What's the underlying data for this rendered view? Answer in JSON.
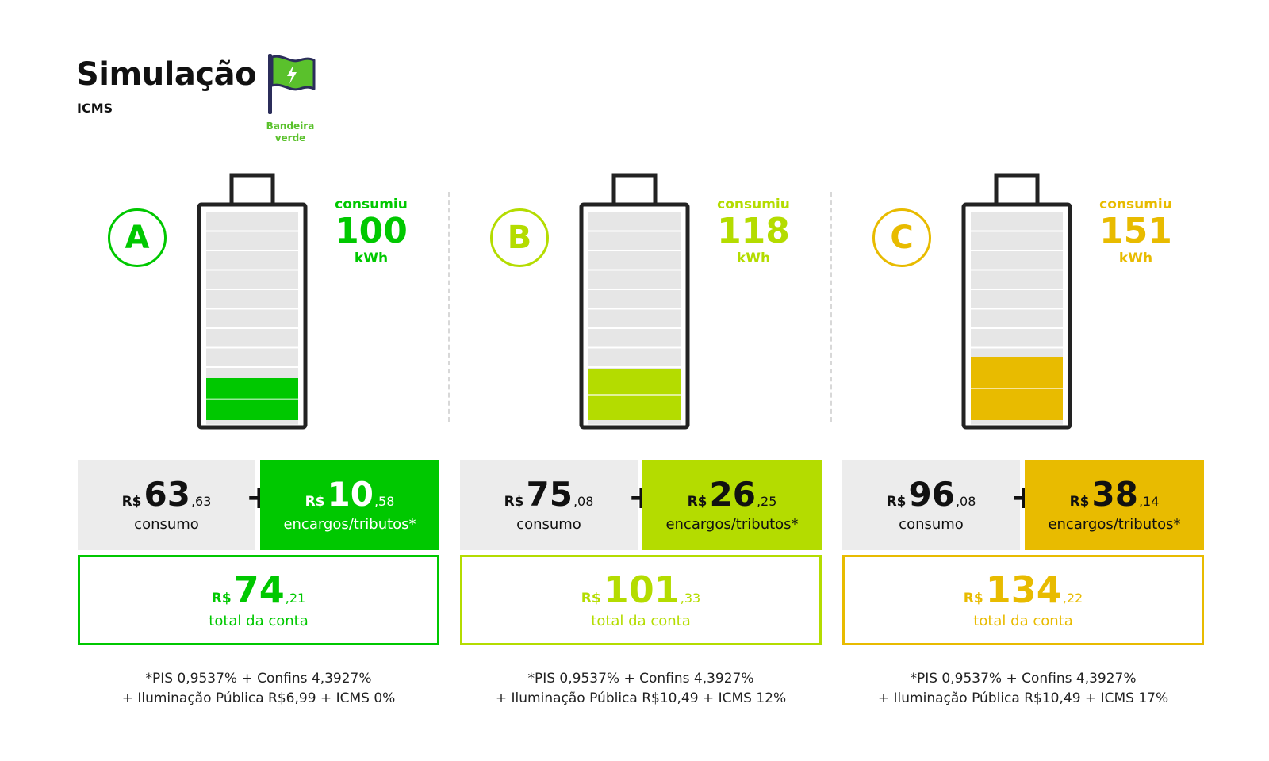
{
  "header": {
    "title": "Simulação",
    "subtitle": "ICMS",
    "flag_label_line1": "Bandeira",
    "flag_label_line2": "verde",
    "flag_color": "#5ac12c",
    "flag_icon": "lightning-icon"
  },
  "scenarios": [
    {
      "letter": "A",
      "color": "#00c800",
      "usage_label": "consumiu",
      "usage_value": "100",
      "usage_unit": "kWh",
      "battery_fill_fraction": 0.2,
      "consumo": {
        "currency": "R$",
        "int": "63",
        "dec": ",63",
        "label": "consumo"
      },
      "plus": "+",
      "encargos": {
        "currency": "R$",
        "int": "10",
        "dec": ",58",
        "label": "encargos/tributos*"
      },
      "total": {
        "currency": "R$",
        "int": "74",
        "dec": ",21",
        "label": "total da conta"
      },
      "note_line1": "*PIS 0,9537% + Confins 4,3927%",
      "note_line2": "+ Iluminação Pública R$6,99 + ICMS 0%"
    },
    {
      "letter": "B",
      "color": "#b4dc00",
      "usage_label": "consumiu",
      "usage_value": "118",
      "usage_unit": "kWh",
      "battery_fill_fraction": 0.24,
      "consumo": {
        "currency": "R$",
        "int": "75",
        "dec": ",08",
        "label": "consumo"
      },
      "plus": "+",
      "encargos": {
        "currency": "R$",
        "int": "26",
        "dec": ",25",
        "label": "encargos/tributos*"
      },
      "total": {
        "currency": "R$",
        "int": "101",
        "dec": ",33",
        "label": "total da conta"
      },
      "note_line1": "*PIS 0,9537% + Confins 4,3927%",
      "note_line2": "+ Iluminação Pública R$10,49 + ICMS 12%"
    },
    {
      "letter": "C",
      "color": "#e8bb00",
      "usage_label": "consumiu",
      "usage_value": "151",
      "usage_unit": "kWh",
      "battery_fill_fraction": 0.3,
      "consumo": {
        "currency": "R$",
        "int": "96",
        "dec": ",08",
        "label": "consumo"
      },
      "plus": "+",
      "encargos": {
        "currency": "R$",
        "int": "38",
        "dec": ",14",
        "label": "encargos/tributos*"
      },
      "total": {
        "currency": "R$",
        "int": "134",
        "dec": ",22",
        "label": "total da conta"
      },
      "note_line1": "*PIS 0,9537% + Confins 4,3927%",
      "note_line2": "+ Iluminação Pública R$10,49 + ICMS 17%"
    }
  ]
}
